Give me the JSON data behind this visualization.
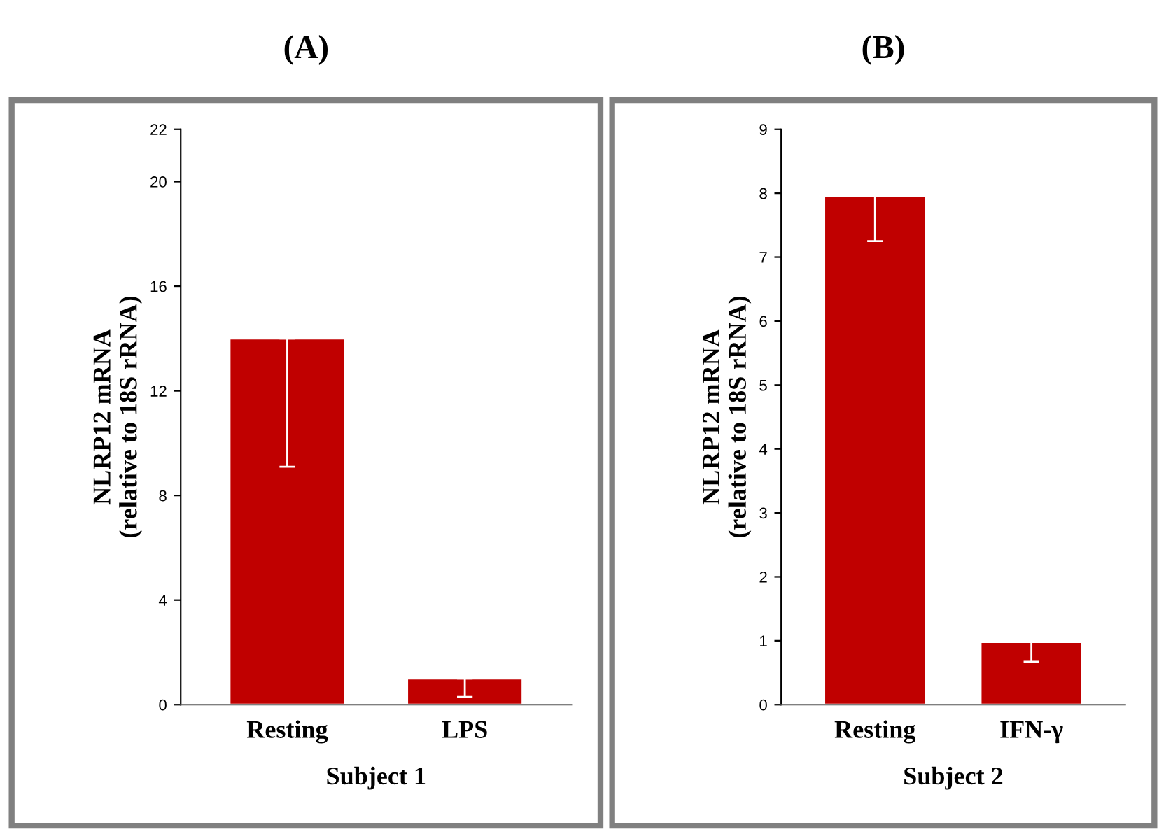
{
  "chart_data": [
    {
      "type": "bar",
      "title": "(A)",
      "xlabel": "Subject 1",
      "ylabel": "NLRP12 mRNA\n(relative to 18S rRNA)",
      "categories": [
        "Resting",
        "LPS"
      ],
      "values": [
        14,
        1.0
      ],
      "errors": [
        [
          9.1,
          14
        ],
        [
          0.3,
          1.0
        ]
      ],
      "color": "#c00000",
      "ylim": [
        0,
        22
      ],
      "yticks": [
        0,
        4,
        8,
        12,
        16,
        20,
        22
      ],
      "grid": false
    },
    {
      "type": "bar",
      "title": "(B)",
      "xlabel": "Subject 2",
      "ylabel": "NLRP12 mRNA\n(relative to 18S rRNA)",
      "categories": [
        "Resting",
        "IFN-γ"
      ],
      "values": [
        7.95,
        0.98
      ],
      "errors": [
        [
          7.25,
          7.95
        ],
        [
          0.67,
          0.98
        ]
      ],
      "color": "#c00000",
      "ylim": [
        0,
        9
      ],
      "yticks": [
        0,
        1,
        2,
        3,
        4,
        5,
        6,
        7,
        8,
        9
      ],
      "grid": false
    }
  ]
}
